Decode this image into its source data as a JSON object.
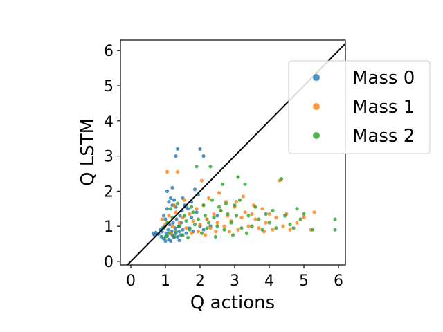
{
  "chart_data": {
    "type": "scatter",
    "xlabel": "Q actions",
    "ylabel": "Q LSTM",
    "xlim": [
      -0.3,
      6.2
    ],
    "ylim": [
      -0.1,
      6.3
    ],
    "xticks": [
      0,
      1,
      2,
      3,
      4,
      5,
      6
    ],
    "yticks": [
      0,
      1,
      2,
      3,
      4,
      5,
      6
    ],
    "grid": false,
    "legend_position": "upper-right",
    "reference_line": {
      "from": [
        -0.3,
        -0.3
      ],
      "to": [
        6.3,
        6.3
      ],
      "color": "#000000"
    },
    "series": [
      {
        "name": "Mass 0",
        "color": "#1f77b4",
        "points": [
          [
            0.65,
            0.8
          ],
          [
            0.68,
            0.75
          ],
          [
            0.72,
            0.82
          ],
          [
            0.8,
            0.78
          ],
          [
            0.85,
            0.9
          ],
          [
            0.88,
            0.7
          ],
          [
            0.9,
            0.85
          ],
          [
            0.92,
            0.95
          ],
          [
            0.95,
            0.65
          ],
          [
            0.98,
            1.0
          ],
          [
            1.0,
            0.58
          ],
          [
            1.02,
            0.8
          ],
          [
            1.05,
            0.72
          ],
          [
            1.08,
            0.9
          ],
          [
            1.1,
            0.62
          ],
          [
            1.12,
            1.05
          ],
          [
            1.15,
            0.58
          ],
          [
            1.18,
            0.85
          ],
          [
            1.2,
            0.75
          ],
          [
            1.22,
            1.1
          ],
          [
            1.25,
            0.68
          ],
          [
            1.28,
            0.95
          ],
          [
            1.3,
            0.8
          ],
          [
            1.32,
            1.2
          ],
          [
            1.35,
            0.7
          ],
          [
            1.38,
            1.0
          ],
          [
            1.4,
            0.85
          ],
          [
            1.42,
            1.3
          ],
          [
            1.45,
            0.75
          ],
          [
            1.48,
            1.45
          ],
          [
            1.5,
            0.9
          ],
          [
            1.55,
            1.6
          ],
          [
            1.6,
            0.8
          ],
          [
            1.65,
            1.5
          ],
          [
            1.7,
            0.95
          ],
          [
            1.75,
            1.7
          ],
          [
            1.8,
            0.85
          ],
          [
            1.9,
            1.4
          ],
          [
            2.0,
            1.0
          ],
          [
            2.1,
            0.9
          ],
          [
            1.05,
            1.5
          ],
          [
            1.1,
            1.7
          ],
          [
            1.15,
            1.8
          ],
          [
            1.2,
            1.6
          ],
          [
            1.25,
            1.75
          ],
          [
            1.3,
            1.55
          ],
          [
            1.0,
            1.2
          ],
          [
            0.95,
            1.3
          ],
          [
            1.05,
            2.0
          ],
          [
            1.2,
            2.1
          ],
          [
            1.3,
            3.0
          ],
          [
            1.35,
            3.2
          ],
          [
            1.5,
            1.8
          ],
          [
            2.0,
            3.2
          ],
          [
            2.1,
            3.0
          ],
          [
            1.95,
            1.9
          ],
          [
            1.85,
            2.05
          ],
          [
            1.6,
            1.55
          ],
          [
            1.45,
            1.1
          ],
          [
            1.4,
            0.6
          ],
          [
            2.2,
            1.2
          ],
          [
            2.3,
            1.0
          ],
          [
            2.5,
            1.3
          ],
          [
            1.75,
            1.25
          ]
        ]
      },
      {
        "name": "Mass 1",
        "color": "#ff7f0e",
        "points": [
          [
            0.9,
            1.2
          ],
          [
            1.0,
            1.05
          ],
          [
            1.05,
            2.55
          ],
          [
            1.1,
            1.3
          ],
          [
            1.2,
            1.0
          ],
          [
            1.3,
            1.4
          ],
          [
            1.35,
            2.55
          ],
          [
            1.4,
            1.1
          ],
          [
            1.5,
            1.25
          ],
          [
            1.6,
            0.95
          ],
          [
            1.7,
            1.35
          ],
          [
            1.8,
            1.15
          ],
          [
            1.9,
            1.5
          ],
          [
            2.0,
            1.05
          ],
          [
            2.05,
            2.3
          ],
          [
            2.1,
            1.6
          ],
          [
            2.2,
            1.2
          ],
          [
            2.3,
            0.95
          ],
          [
            2.4,
            1.35
          ],
          [
            2.5,
            1.1
          ],
          [
            2.6,
            1.45
          ],
          [
            2.7,
            1.0
          ],
          [
            2.8,
            1.3
          ],
          [
            2.9,
            1.15
          ],
          [
            3.0,
            1.55
          ],
          [
            3.1,
            0.9
          ],
          [
            3.2,
            1.25
          ],
          [
            3.3,
            1.4
          ],
          [
            3.4,
            1.0
          ],
          [
            3.5,
            1.35
          ],
          [
            3.6,
            1.2
          ],
          [
            3.7,
            0.95
          ],
          [
            3.8,
            1.5
          ],
          [
            3.9,
            1.1
          ],
          [
            4.0,
            1.35
          ],
          [
            4.1,
            0.9
          ],
          [
            4.2,
            1.25
          ],
          [
            4.3,
            2.3
          ],
          [
            4.4,
            1.0
          ],
          [
            4.5,
            1.35
          ],
          [
            4.6,
            0.9
          ],
          [
            4.8,
            1.1
          ],
          [
            5.0,
            1.25
          ],
          [
            5.2,
            0.9
          ],
          [
            5.3,
            1.4
          ],
          [
            2.25,
            1.8
          ],
          [
            2.75,
            1.7
          ],
          [
            3.25,
            1.85
          ],
          [
            1.25,
            1.6
          ],
          [
            1.55,
            1.75
          ],
          [
            1.75,
            0.8
          ],
          [
            2.15,
            0.75
          ],
          [
            2.45,
            0.85
          ],
          [
            3.05,
            1.7
          ],
          [
            3.55,
            1.6
          ],
          [
            3.85,
            0.85
          ],
          [
            2.55,
            1.95
          ],
          [
            1.95,
            0.85
          ],
          [
            1.15,
            0.8
          ],
          [
            2.85,
            0.85
          ]
        ]
      },
      {
        "name": "Mass 2",
        "color": "#2ca02c",
        "points": [
          [
            0.95,
            0.95
          ],
          [
            1.0,
            0.7
          ],
          [
            1.05,
            1.1
          ],
          [
            1.1,
            0.8
          ],
          [
            1.2,
            1.25
          ],
          [
            1.3,
            0.85
          ],
          [
            1.4,
            1.0
          ],
          [
            1.5,
            0.75
          ],
          [
            1.6,
            1.15
          ],
          [
            1.7,
            0.9
          ],
          [
            1.8,
            1.4
          ],
          [
            1.9,
            2.7
          ],
          [
            1.95,
            1.2
          ],
          [
            2.05,
            0.8
          ],
          [
            2.1,
            1.6
          ],
          [
            2.15,
            1.3
          ],
          [
            2.2,
            0.95
          ],
          [
            2.3,
            2.7
          ],
          [
            2.4,
            1.25
          ],
          [
            2.5,
            1.0
          ],
          [
            2.6,
            1.45
          ],
          [
            2.7,
            0.9
          ],
          [
            2.8,
            1.35
          ],
          [
            2.9,
            1.1
          ],
          [
            3.0,
            1.6
          ],
          [
            3.1,
            2.4
          ],
          [
            3.2,
            0.95
          ],
          [
            3.3,
            2.2
          ],
          [
            3.4,
            1.3
          ],
          [
            3.5,
            1.0
          ],
          [
            3.6,
            1.55
          ],
          [
            3.7,
            1.2
          ],
          [
            3.8,
            0.9
          ],
          [
            3.9,
            1.35
          ],
          [
            4.0,
            1.1
          ],
          [
            4.1,
            1.45
          ],
          [
            4.2,
            0.95
          ],
          [
            4.35,
            2.35
          ],
          [
            4.45,
            1.3
          ],
          [
            4.6,
            1.05
          ],
          [
            4.7,
            0.95
          ],
          [
            4.8,
            1.5
          ],
          [
            4.9,
            1.2
          ],
          [
            5.0,
            1.35
          ],
          [
            5.25,
            0.9
          ],
          [
            5.9,
            1.2
          ],
          [
            5.9,
            0.9
          ],
          [
            2.65,
            2.2
          ],
          [
            1.15,
            1.5
          ],
          [
            1.35,
            1.65
          ],
          [
            1.55,
            1.3
          ],
          [
            1.75,
            1.55
          ],
          [
            2.35,
            1.75
          ],
          [
            2.75,
            1.65
          ],
          [
            3.15,
            1.75
          ],
          [
            1.85,
            1.05
          ],
          [
            2.25,
            1.1
          ],
          [
            2.45,
            0.7
          ],
          [
            2.95,
            0.75
          ],
          [
            3.35,
            0.8
          ],
          [
            1.25,
            0.72
          ],
          [
            1.65,
            0.68
          ],
          [
            2.55,
            1.55
          ],
          [
            3.05,
            1.3
          ]
        ]
      }
    ]
  }
}
